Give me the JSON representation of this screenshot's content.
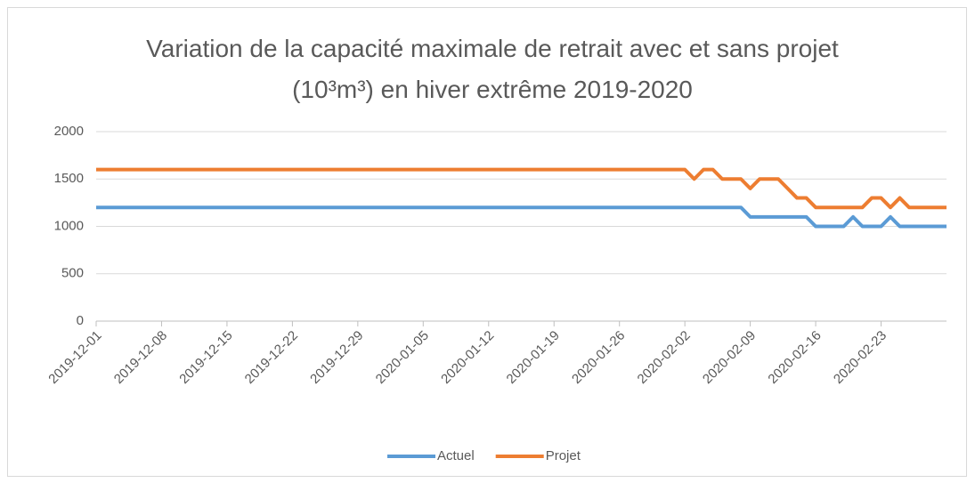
{
  "chart_data": {
    "type": "line",
    "title": "Variation de la capacité maximale de retrait avec et sans projet (10³m³) en hiver extrême 2019-2020",
    "x": [
      "2019-12-01",
      "2019-12-02",
      "2019-12-03",
      "2019-12-04",
      "2019-12-05",
      "2019-12-06",
      "2019-12-07",
      "2019-12-08",
      "2019-12-09",
      "2019-12-10",
      "2019-12-11",
      "2019-12-12",
      "2019-12-13",
      "2019-12-14",
      "2019-12-15",
      "2019-12-16",
      "2019-12-17",
      "2019-12-18",
      "2019-12-19",
      "2019-12-20",
      "2019-12-21",
      "2019-12-22",
      "2019-12-23",
      "2019-12-24",
      "2019-12-25",
      "2019-12-26",
      "2019-12-27",
      "2019-12-28",
      "2019-12-29",
      "2019-12-30",
      "2019-12-31",
      "2020-01-01",
      "2020-01-02",
      "2020-01-03",
      "2020-01-04",
      "2020-01-05",
      "2020-01-06",
      "2020-01-07",
      "2020-01-08",
      "2020-01-09",
      "2020-01-10",
      "2020-01-11",
      "2020-01-12",
      "2020-01-13",
      "2020-01-14",
      "2020-01-15",
      "2020-01-16",
      "2020-01-17",
      "2020-01-18",
      "2020-01-19",
      "2020-01-20",
      "2020-01-21",
      "2020-01-22",
      "2020-01-23",
      "2020-01-24",
      "2020-01-25",
      "2020-01-26",
      "2020-01-27",
      "2020-01-28",
      "2020-01-29",
      "2020-01-30",
      "2020-01-31",
      "2020-02-01",
      "2020-02-02",
      "2020-02-03",
      "2020-02-04",
      "2020-02-05",
      "2020-02-06",
      "2020-02-07",
      "2020-02-08",
      "2020-02-09",
      "2020-02-10",
      "2020-02-11",
      "2020-02-12",
      "2020-02-13",
      "2020-02-14",
      "2020-02-15",
      "2020-02-16",
      "2020-02-17",
      "2020-02-18",
      "2020-02-19",
      "2020-02-20",
      "2020-02-21",
      "2020-02-22",
      "2020-02-23",
      "2020-02-24",
      "2020-02-25",
      "2020-02-26",
      "2020-02-27",
      "2020-02-28",
      "2020-02-29",
      "2020-03-01"
    ],
    "series": [
      {
        "name": "Actuel",
        "color": "#5b9bd5",
        "values": [
          1200,
          1200,
          1200,
          1200,
          1200,
          1200,
          1200,
          1200,
          1200,
          1200,
          1200,
          1200,
          1200,
          1200,
          1200,
          1200,
          1200,
          1200,
          1200,
          1200,
          1200,
          1200,
          1200,
          1200,
          1200,
          1200,
          1200,
          1200,
          1200,
          1200,
          1200,
          1200,
          1200,
          1200,
          1200,
          1200,
          1200,
          1200,
          1200,
          1200,
          1200,
          1200,
          1200,
          1200,
          1200,
          1200,
          1200,
          1200,
          1200,
          1200,
          1200,
          1200,
          1200,
          1200,
          1200,
          1200,
          1200,
          1200,
          1200,
          1200,
          1200,
          1200,
          1200,
          1200,
          1200,
          1200,
          1200,
          1200,
          1200,
          1200,
          1100,
          1100,
          1100,
          1100,
          1100,
          1100,
          1100,
          1000,
          1000,
          1000,
          1000,
          1100,
          1000,
          1000,
          1000,
          1100,
          1000,
          1000,
          1000,
          1000,
          1000,
          1000
        ]
      },
      {
        "name": "Projet",
        "color": "#ed7d31",
        "values": [
          1600,
          1600,
          1600,
          1600,
          1600,
          1600,
          1600,
          1600,
          1600,
          1600,
          1600,
          1600,
          1600,
          1600,
          1600,
          1600,
          1600,
          1600,
          1600,
          1600,
          1600,
          1600,
          1600,
          1600,
          1600,
          1600,
          1600,
          1600,
          1600,
          1600,
          1600,
          1600,
          1600,
          1600,
          1600,
          1600,
          1600,
          1600,
          1600,
          1600,
          1600,
          1600,
          1600,
          1600,
          1600,
          1600,
          1600,
          1600,
          1600,
          1600,
          1600,
          1600,
          1600,
          1600,
          1600,
          1600,
          1600,
          1600,
          1600,
          1600,
          1600,
          1600,
          1600,
          1600,
          1500,
          1600,
          1600,
          1500,
          1500,
          1500,
          1400,
          1500,
          1500,
          1500,
          1400,
          1300,
          1300,
          1200,
          1200,
          1200,
          1200,
          1200,
          1200,
          1300,
          1300,
          1200,
          1300,
          1200,
          1200,
          1200,
          1200,
          1200
        ]
      }
    ],
    "xlim": [
      "2019-12-01",
      "2020-03-01"
    ],
    "xticks": [
      "2019-12-01",
      "2019-12-08",
      "2019-12-15",
      "2019-12-22",
      "2019-12-29",
      "2020-01-05",
      "2020-01-12",
      "2020-01-19",
      "2020-01-26",
      "2020-02-02",
      "2020-02-09",
      "2020-02-16",
      "2020-02-23"
    ],
    "ylim": [
      0,
      2000
    ],
    "yticks": [
      0,
      500,
      1000,
      1500,
      2000
    ],
    "grid": true,
    "legend": "bottom"
  }
}
